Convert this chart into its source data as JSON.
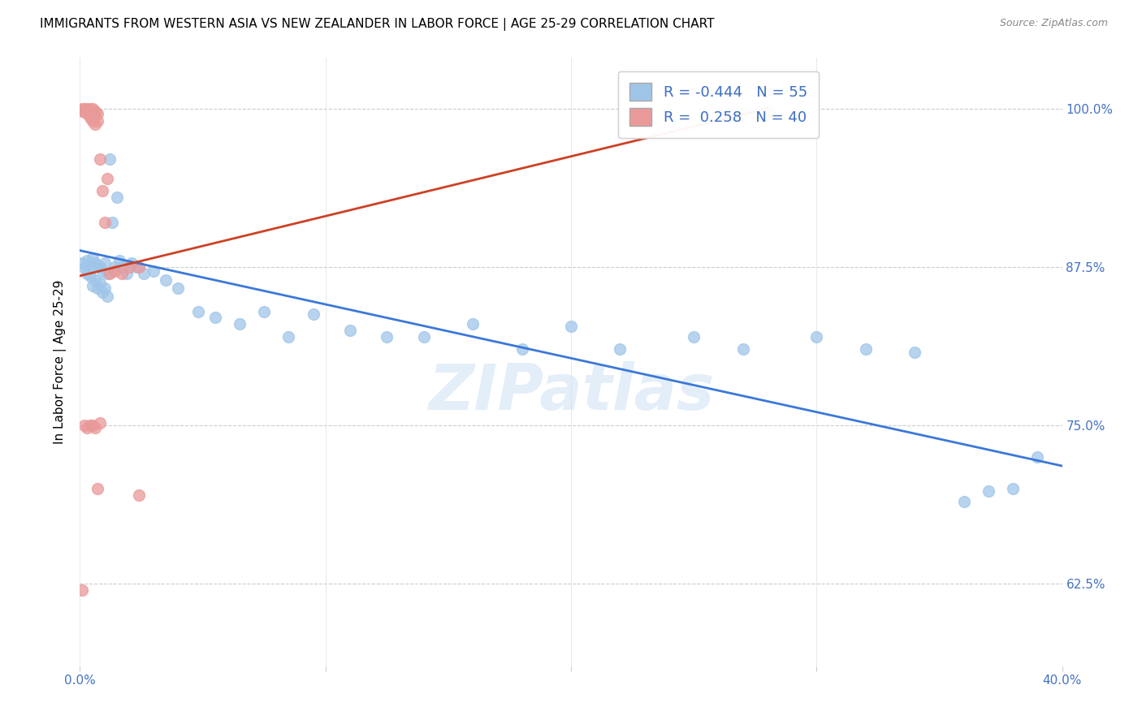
{
  "title": "IMMIGRANTS FROM WESTERN ASIA VS NEW ZEALANDER IN LABOR FORCE | AGE 25-29 CORRELATION CHART",
  "source": "Source: ZipAtlas.com",
  "ylabel": "In Labor Force | Age 25-29",
  "ytick_labels": [
    "100.0%",
    "87.5%",
    "75.0%",
    "62.5%"
  ],
  "ytick_values": [
    1.0,
    0.875,
    0.75,
    0.625
  ],
  "xlim": [
    0.0,
    0.4
  ],
  "ylim": [
    0.56,
    1.04
  ],
  "legend_label1": "R = -0.444   N = 55",
  "legend_label2": "R =  0.258   N = 40",
  "blue_color": "#9fc5e8",
  "pink_color": "#ea9999",
  "line_blue": "#3c78d8",
  "line_pink": "#cc4125",
  "watermark": "ZIPatlas",
  "blue_scatter_x": [
    0.001,
    0.002,
    0.003,
    0.003,
    0.004,
    0.004,
    0.005,
    0.005,
    0.006,
    0.006,
    0.007,
    0.007,
    0.008,
    0.008,
    0.009,
    0.009,
    0.01,
    0.01,
    0.011,
    0.011,
    0.012,
    0.013,
    0.014,
    0.015,
    0.016,
    0.017,
    0.019,
    0.021,
    0.023,
    0.026,
    0.03,
    0.035,
    0.04,
    0.048,
    0.055,
    0.065,
    0.075,
    0.085,
    0.095,
    0.11,
    0.125,
    0.14,
    0.16,
    0.18,
    0.2,
    0.22,
    0.25,
    0.27,
    0.3,
    0.32,
    0.34,
    0.36,
    0.37,
    0.38,
    0.39
  ],
  "blue_scatter_y": [
    0.878,
    0.874,
    0.88,
    0.87,
    0.876,
    0.868,
    0.882,
    0.86,
    0.878,
    0.865,
    0.876,
    0.858,
    0.875,
    0.862,
    0.872,
    0.855,
    0.878,
    0.858,
    0.87,
    0.852,
    0.96,
    0.91,
    0.875,
    0.93,
    0.88,
    0.875,
    0.87,
    0.878,
    0.875,
    0.87,
    0.872,
    0.865,
    0.858,
    0.84,
    0.835,
    0.83,
    0.84,
    0.82,
    0.838,
    0.825,
    0.82,
    0.82,
    0.83,
    0.81,
    0.828,
    0.81,
    0.82,
    0.81,
    0.82,
    0.81,
    0.808,
    0.69,
    0.698,
    0.7,
    0.725
  ],
  "pink_scatter_x": [
    0.001,
    0.001,
    0.002,
    0.002,
    0.003,
    0.003,
    0.003,
    0.004,
    0.004,
    0.004,
    0.004,
    0.005,
    0.005,
    0.005,
    0.005,
    0.005,
    0.006,
    0.006,
    0.006,
    0.007,
    0.007,
    0.008,
    0.009,
    0.01,
    0.011,
    0.012,
    0.014,
    0.017,
    0.02,
    0.024,
    0.001,
    0.002,
    0.003,
    0.004,
    0.005,
    0.006,
    0.007,
    0.008,
    0.024,
    0.28
  ],
  "pink_scatter_y": [
    1.0,
    0.998,
    1.0,
    0.998,
    1.0,
    0.998,
    0.996,
    1.0,
    0.998,
    0.996,
    0.993,
    1.0,
    0.998,
    0.996,
    0.993,
    0.99,
    0.998,
    0.996,
    0.988,
    0.996,
    0.99,
    0.96,
    0.935,
    0.91,
    0.945,
    0.87,
    0.872,
    0.87,
    0.875,
    0.875,
    0.62,
    0.75,
    0.748,
    0.75,
    0.75,
    0.748,
    0.7,
    0.752,
    0.695,
    0.998
  ],
  "blue_line_x": [
    0.0,
    0.4
  ],
  "blue_line_y": [
    0.888,
    0.718
  ],
  "pink_line_x": [
    0.0,
    0.28
  ],
  "pink_line_y": [
    0.868,
    1.0
  ]
}
